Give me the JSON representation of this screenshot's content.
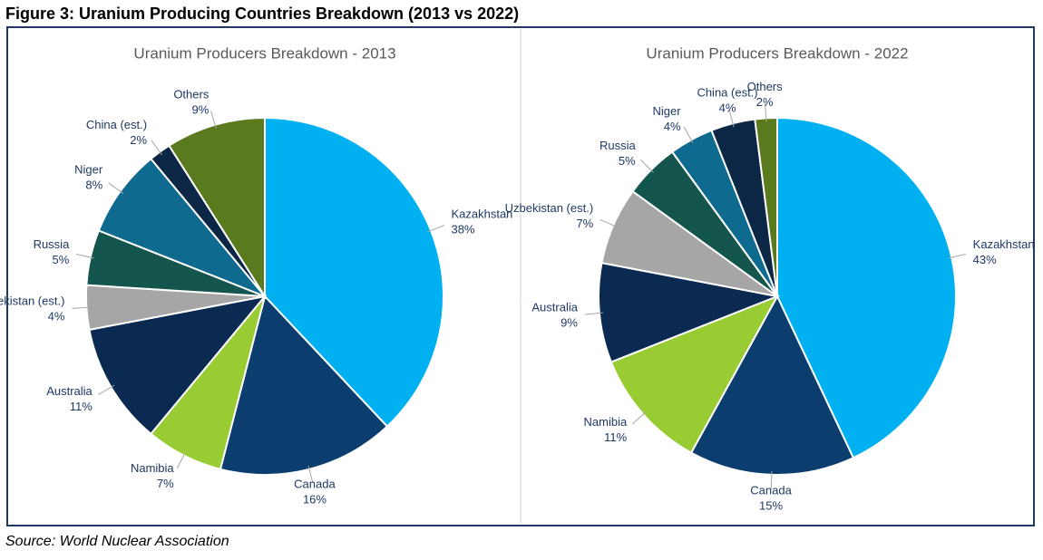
{
  "title": "Figure 3: Uranium Producing Countries Breakdown (2013 vs 2022)",
  "source": "Source: World Nuclear Association",
  "chart_data": [
    {
      "type": "pie",
      "title": "Uranium Producers Breakdown - 2013",
      "categories": [
        "Kazakhstan",
        "Canada",
        "Namibia",
        "Australia",
        "Uzbekistan (est.)",
        "Russia",
        "Niger",
        "China (est.)",
        "Others"
      ],
      "values": [
        38,
        16,
        7,
        11,
        4,
        5,
        8,
        2,
        9
      ],
      "value_labels": [
        "38%",
        "16%",
        "7%",
        "11%",
        "4%",
        "5%",
        "8%",
        "2%",
        "9%"
      ],
      "colors": [
        "#00b0f0",
        "#0b3d6e",
        "#99cc33",
        "#0a2a52",
        "#a6a6a6",
        "#14564e",
        "#0f6a8f",
        "#0b2745",
        "#5a7a1e"
      ]
    },
    {
      "type": "pie",
      "title": "Uranium Producers Breakdown - 2022",
      "categories": [
        "Kazakhstan",
        "Canada",
        "Namibia",
        "Australia",
        "Uzbekistan (est.)",
        "Russia",
        "Niger",
        "China (est.)",
        "Others"
      ],
      "values": [
        43,
        15,
        11,
        9,
        7,
        5,
        4,
        4,
        2
      ],
      "value_labels": [
        "43%",
        "15%",
        "11%",
        "9%",
        "7%",
        "5%",
        "4%",
        "4%",
        "2%"
      ],
      "colors": [
        "#00b0f0",
        "#0b3d6e",
        "#99cc33",
        "#0a2a52",
        "#a6a6a6",
        "#14564e",
        "#0f6a8f",
        "#0b2745",
        "#5a7a1e"
      ]
    }
  ]
}
